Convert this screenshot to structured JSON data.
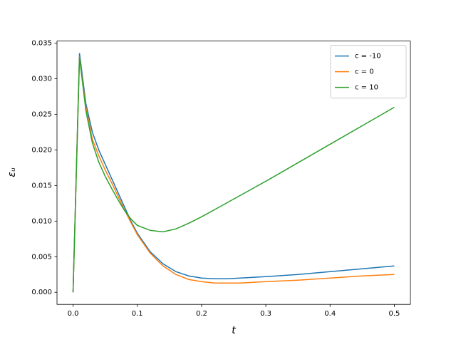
{
  "chart_data": {
    "type": "line",
    "xlabel": "t",
    "ylabel": "εᵤ",
    "x": [
      0,
      0.01,
      0.02,
      0.03,
      0.04,
      0.05,
      0.06,
      0.07,
      0.08,
      0.09,
      0.1,
      0.12,
      0.14,
      0.16,
      0.18,
      0.2,
      0.22,
      0.24,
      0.26,
      0.28,
      0.3,
      0.35,
      0.4,
      0.45,
      0.5
    ],
    "series": [
      {
        "name": "c = -10",
        "color": "#1f77b4",
        "values": [
          0,
          0.0336,
          0.0265,
          0.0225,
          0.02,
          0.018,
          0.016,
          0.014,
          0.012,
          0.01,
          0.0083,
          0.0057,
          0.004,
          0.0029,
          0.0023,
          0.002,
          0.0019,
          0.0019,
          0.002,
          0.0021,
          0.0022,
          0.0025,
          0.0029,
          0.0033,
          0.0037
        ]
      },
      {
        "name": "c = 0",
        "color": "#ff7f0e",
        "values": [
          0,
          0.0331,
          0.026,
          0.0215,
          0.0192,
          0.0172,
          0.0154,
          0.0135,
          0.0116,
          0.0098,
          0.0081,
          0.0055,
          0.0037,
          0.0025,
          0.0018,
          0.0015,
          0.0013,
          0.0013,
          0.0013,
          0.0014,
          0.0015,
          0.0017,
          0.002,
          0.0023,
          0.0025
        ]
      },
      {
        "name": "c = 10",
        "color": "#2ca02c",
        "values": [
          0,
          0.033,
          0.0255,
          0.021,
          0.0183,
          0.0163,
          0.0146,
          0.013,
          0.0115,
          0.0103,
          0.0094,
          0.0087,
          0.0085,
          0.0089,
          0.0097,
          0.0106,
          0.0116,
          0.0126,
          0.0136,
          0.0146,
          0.0156,
          0.0182,
          0.0208,
          0.0234,
          0.026
        ]
      }
    ],
    "xlim": [
      -0.025,
      0.525
    ],
    "xticks": [
      {
        "value": 0,
        "label": "0.0"
      },
      0.1,
      0.2,
      0.3,
      0.4,
      0.5
    ],
    "ylim": [
      -0.0017,
      0.0353
    ],
    "yticks": [
      {
        "value": 0,
        "label": "0.000"
      },
      {
        "value": 0.005,
        "label": "0.005"
      },
      {
        "value": 0.01,
        "label": "0.010"
      },
      {
        "value": 0.015,
        "label": "0.015"
      },
      {
        "value": 0.02,
        "label": "0.020"
      },
      {
        "value": 0.025,
        "label": "0.025"
      },
      {
        "value": 0.03,
        "label": "0.030"
      },
      {
        "value": 0.035,
        "label": "0.035"
      }
    ],
    "grid": false,
    "legend": "upper right"
  }
}
